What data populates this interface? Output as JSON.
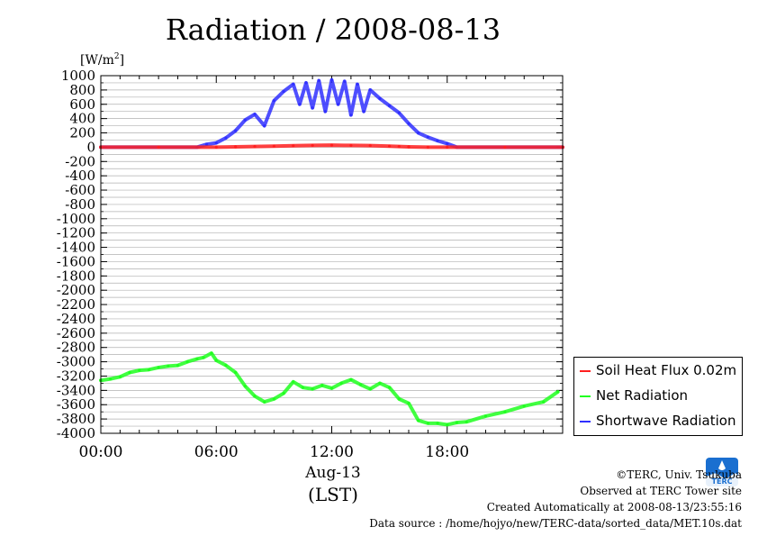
{
  "title": "Radiation / 2008-08-13",
  "x_unit": {
    "date": "Aug-13",
    "tz": "(LST)"
  },
  "credits": {
    "line1": "©TERC, Univ. Tsukuba",
    "line2": "Observed at TERC Tower site",
    "line3": "Created Automatically at 2008-08-13/23:55:16",
    "line4": "Data source : /home/hojyo/new/TERC-data/sorted_data/MET.10s.dat"
  },
  "logo_text": "TERC",
  "chart_data": {
    "type": "line",
    "ylabel": "[W/m²]",
    "ylabel_base": "[W/m",
    "ylabel_sup": "2",
    "ylabel_end": "]",
    "ylim": [
      -4000,
      1000
    ],
    "yticks": [
      1000,
      800,
      600,
      400,
      200,
      0,
      -200,
      -400,
      -600,
      -800,
      -1000,
      -1200,
      -1400,
      -1600,
      -1800,
      -2000,
      -2200,
      -2400,
      -2600,
      -2800,
      -3000,
      -3200,
      -3400,
      -3600,
      -3800,
      -4000
    ],
    "xlim": [
      "00:00",
      "24:00"
    ],
    "xticks": [
      "00:00",
      "06:00",
      "12:00",
      "18:00"
    ],
    "grid": true,
    "legend_position": "bottom-right",
    "series": [
      {
        "name": "Soil Heat Flux 0.02m",
        "color": "#ff2020",
        "x": [
          "00:00",
          "03:00",
          "06:00",
          "07:00",
          "08:00",
          "09:00",
          "10:00",
          "11:00",
          "12:00",
          "13:00",
          "14:00",
          "15:00",
          "15:30",
          "16:00",
          "17:00",
          "18:00",
          "21:00",
          "24:00"
        ],
        "values": [
          0,
          0,
          0,
          5,
          10,
          15,
          20,
          25,
          28,
          25,
          22,
          15,
          10,
          5,
          0,
          0,
          0,
          0
        ]
      },
      {
        "name": "Net Radiation",
        "color": "#20ff20",
        "x": [
          "00:00",
          "00:30",
          "01:00",
          "01:30",
          "02:00",
          "02:30",
          "03:00",
          "03:30",
          "04:00",
          "04:30",
          "05:00",
          "05:20",
          "05:45",
          "06:00",
          "06:30",
          "07:00",
          "07:30",
          "08:00",
          "08:30",
          "09:00",
          "09:30",
          "10:00",
          "10:30",
          "11:00",
          "11:30",
          "12:00",
          "12:30",
          "13:00",
          "13:30",
          "14:00",
          "14:30",
          "15:00",
          "15:30",
          "16:00",
          "16:30",
          "17:00",
          "17:30",
          "18:00",
          "18:30",
          "19:00",
          "20:00",
          "21:00",
          "22:00",
          "23:00",
          "23:45"
        ],
        "values": [
          -3260,
          -3240,
          -3210,
          -3150,
          -3120,
          -3110,
          -3080,
          -3060,
          -3050,
          -3000,
          -2960,
          -2940,
          -2880,
          -2980,
          -3050,
          -3150,
          -3340,
          -3480,
          -3560,
          -3520,
          -3440,
          -3280,
          -3360,
          -3380,
          -3330,
          -3370,
          -3300,
          -3250,
          -3320,
          -3380,
          -3300,
          -3360,
          -3520,
          -3580,
          -3820,
          -3860,
          -3860,
          -3880,
          -3850,
          -3840,
          -3760,
          -3700,
          -3620,
          -3560,
          -3420
        ]
      },
      {
        "name": "Shortwave Radiation",
        "color": "#3030ff",
        "x": [
          "00:00",
          "05:00",
          "05:30",
          "06:00",
          "06:30",
          "07:00",
          "07:30",
          "08:00",
          "08:30",
          "09:00",
          "09:30",
          "10:00",
          "10:20",
          "10:40",
          "11:00",
          "11:20",
          "11:40",
          "12:00",
          "12:20",
          "12:40",
          "13:00",
          "13:20",
          "13:40",
          "14:00",
          "14:30",
          "15:00",
          "15:30",
          "16:00",
          "16:30",
          "17:00",
          "17:30",
          "18:00",
          "18:30",
          "24:00"
        ],
        "values": [
          0,
          0,
          40,
          60,
          130,
          230,
          380,
          460,
          300,
          650,
          780,
          880,
          600,
          900,
          550,
          930,
          500,
          940,
          600,
          920,
          450,
          880,
          500,
          800,
          680,
          580,
          480,
          330,
          200,
          140,
          90,
          50,
          0,
          0
        ]
      }
    ]
  }
}
